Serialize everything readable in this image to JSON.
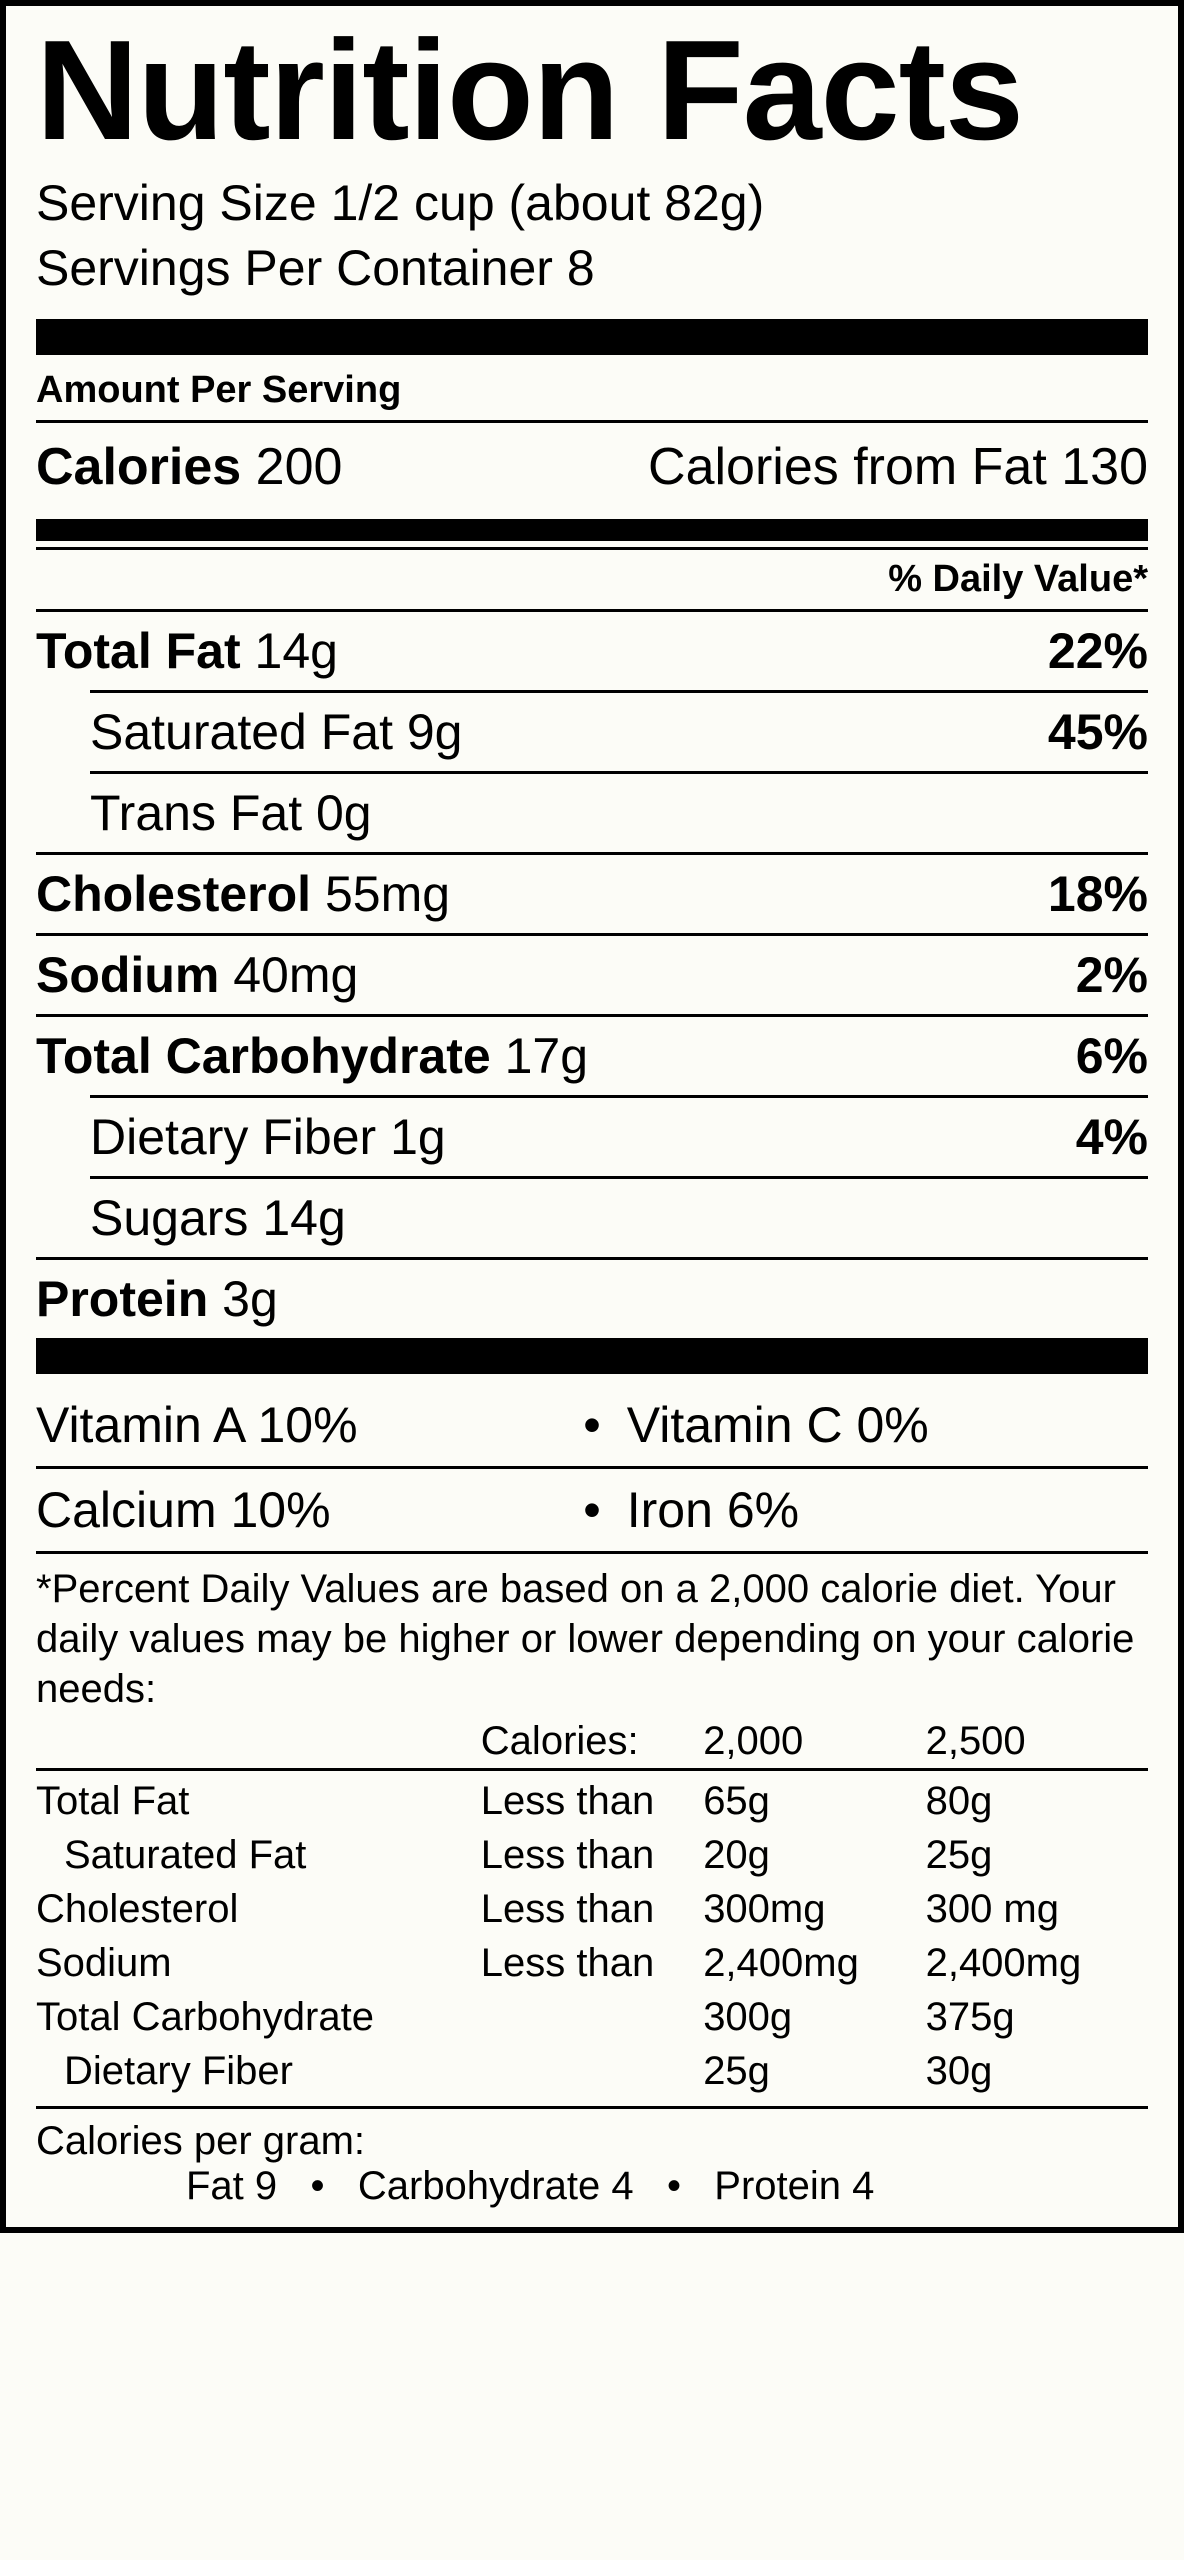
{
  "colors": {
    "background": "#fcfcf7",
    "foreground": "#000000"
  },
  "title": "Nutrition Facts",
  "serving": {
    "size_label": "Serving Size",
    "size_value": "1/2 cup (about 82g)",
    "per_container_label": "Servings Per Container",
    "per_container_value": "8"
  },
  "amount_per_serving_label": "Amount Per Serving",
  "calories": {
    "label": "Calories",
    "value": "200",
    "from_fat_label": "Calories from Fat",
    "from_fat_value": "130"
  },
  "dv_header": "% Daily Value*",
  "nutrients": {
    "total_fat": {
      "label": "Total Fat",
      "amount": "14g",
      "dv": "22%"
    },
    "sat_fat": {
      "label": "Saturated Fat",
      "amount": "9g",
      "dv": "45%"
    },
    "trans_fat": {
      "label": "Trans Fat",
      "amount": "0g",
      "dv": ""
    },
    "cholesterol": {
      "label": "Cholesterol",
      "amount": "55mg",
      "dv": "18%"
    },
    "sodium": {
      "label": "Sodium",
      "amount": "40mg",
      "dv": "2%"
    },
    "total_carb": {
      "label": "Total Carbohydrate",
      "amount": "17g",
      "dv": "6%"
    },
    "fiber": {
      "label": "Dietary Fiber",
      "amount": "1g",
      "dv": "4%"
    },
    "sugars": {
      "label": "Sugars",
      "amount": "14g",
      "dv": ""
    },
    "protein": {
      "label": "Protein",
      "amount": "3g",
      "dv": ""
    }
  },
  "vitamins": {
    "vit_a": {
      "label": "Vitamin A",
      "value": "10%"
    },
    "vit_c": {
      "label": "Vitamin C",
      "value": "0%"
    },
    "calcium": {
      "label": "Calcium",
      "value": "10%"
    },
    "iron": {
      "label": "Iron",
      "value": "6%"
    }
  },
  "footnote_text": "*Percent Daily Values are based on a 2,000 calorie diet. Your daily values may be higher or lower depending on your calorie needs:",
  "calorie_table": {
    "header": {
      "c2": "Calories:",
      "c3": "2,000",
      "c4": "2,500"
    },
    "rows": [
      {
        "name": "Total Fat",
        "indent": false,
        "qual": "Less than",
        "v1": "65g",
        "v2": "80g"
      },
      {
        "name": "Saturated Fat",
        "indent": true,
        "qual": "Less than",
        "v1": "20g",
        "v2": "25g"
      },
      {
        "name": "Cholesterol",
        "indent": false,
        "qual": "Less than",
        "v1": "300mg",
        "v2": "300 mg"
      },
      {
        "name": "Sodium",
        "indent": false,
        "qual": "Less than",
        "v1": "2,400mg",
        "v2": "2,400mg"
      },
      {
        "name": "Total Carbohydrate",
        "indent": false,
        "qual": "",
        "v1": "300g",
        "v2": "375g"
      },
      {
        "name": "Dietary Fiber",
        "indent": true,
        "qual": "",
        "v1": "25g",
        "v2": "30g"
      }
    ]
  },
  "cal_per_gram": {
    "heading": "Calories per gram:",
    "fat": "Fat 9",
    "carb": "Carbohydrate 4",
    "protein": "Protein 4"
  }
}
